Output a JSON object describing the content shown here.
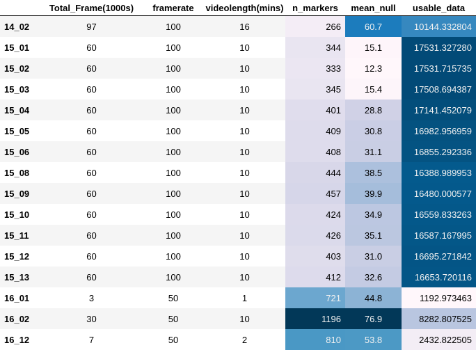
{
  "table": {
    "columns": [
      "",
      "Total_Frame(1000s)",
      "framerate",
      "videolength(mins)",
      "n_markers",
      "mean_null",
      "usable_data"
    ],
    "rows": [
      {
        "id": "14_02",
        "total_frame": "97",
        "framerate": "100",
        "videolength": "16",
        "n_markers": "266",
        "mean_null": "60.7",
        "usable_data": "10144.332804",
        "c_markers": "#f4edf6",
        "t_markers": "#000000",
        "c_null": "#1c7cbd",
        "t_null": "#f1f1f1",
        "c_usable": "#3688bf",
        "t_usable": "#f1f1f1"
      },
      {
        "id": "15_01",
        "total_frame": "60",
        "framerate": "100",
        "videolength": "10",
        "n_markers": "344",
        "mean_null": "15.1",
        "usable_data": "17531.327280",
        "c_markers": "#e9e5f1",
        "t_markers": "#000000",
        "c_null": "#fef5fa",
        "t_null": "#000000",
        "c_usable": "#024a77",
        "t_usable": "#f1f1f1"
      },
      {
        "id": "15_02",
        "total_frame": "60",
        "framerate": "100",
        "videolength": "10",
        "n_markers": "333",
        "mean_null": "12.3",
        "usable_data": "17531.715735",
        "c_markers": "#ebe6f2",
        "t_markers": "#000000",
        "c_null": "#fff7fb",
        "t_null": "#000000",
        "c_usable": "#024a77",
        "t_usable": "#f1f1f1"
      },
      {
        "id": "15_03",
        "total_frame": "60",
        "framerate": "100",
        "videolength": "10",
        "n_markers": "345",
        "mean_null": "15.4",
        "usable_data": "17508.694387",
        "c_markers": "#e9e5f1",
        "t_markers": "#000000",
        "c_null": "#fdf5fa",
        "t_null": "#000000",
        "c_usable": "#024a77",
        "t_usable": "#f1f1f1"
      },
      {
        "id": "15_04",
        "total_frame": "60",
        "framerate": "100",
        "videolength": "10",
        "n_markers": "401",
        "mean_null": "28.8",
        "usable_data": "17141.452079",
        "c_markers": "#e0dded",
        "t_markers": "#000000",
        "c_null": "#d0d1e6",
        "t_null": "#000000",
        "c_usable": "#034e7b",
        "t_usable": "#f1f1f1"
      },
      {
        "id": "15_05",
        "total_frame": "60",
        "framerate": "100",
        "videolength": "10",
        "n_markers": "409",
        "mean_null": "30.8",
        "usable_data": "16982.956959",
        "c_markers": "#dedcec",
        "t_markers": "#000000",
        "c_null": "#cacee5",
        "t_null": "#000000",
        "c_usable": "#045280",
        "t_usable": "#f1f1f1"
      },
      {
        "id": "15_06",
        "total_frame": "60",
        "framerate": "100",
        "videolength": "10",
        "n_markers": "408",
        "mean_null": "31.1",
        "usable_data": "16855.292336",
        "c_markers": "#dedcec",
        "t_markers": "#000000",
        "c_null": "#c9cee4",
        "t_null": "#000000",
        "c_usable": "#045382",
        "t_usable": "#f1f1f1"
      },
      {
        "id": "15_08",
        "total_frame": "60",
        "framerate": "100",
        "videolength": "10",
        "n_markers": "444",
        "mean_null": "38.5",
        "usable_data": "16388.989953",
        "c_markers": "#d8d7e9",
        "t_markers": "#000000",
        "c_null": "#acc0dd",
        "t_null": "#000000",
        "c_usable": "#045a8d",
        "t_usable": "#f1f1f1"
      },
      {
        "id": "15_09",
        "total_frame": "60",
        "framerate": "100",
        "videolength": "10",
        "n_markers": "457",
        "mean_null": "39.9",
        "usable_data": "16480.000577",
        "c_markers": "#d6d6e9",
        "t_markers": "#000000",
        "c_null": "#a5bddb",
        "t_null": "#000000",
        "c_usable": "#04598c",
        "t_usable": "#f1f1f1"
      },
      {
        "id": "15_10",
        "total_frame": "60",
        "framerate": "100",
        "videolength": "10",
        "n_markers": "424",
        "mean_null": "34.9",
        "usable_data": "16559.833263",
        "c_markers": "#dcdaeb",
        "t_markers": "#000000",
        "c_null": "#bcc7e1",
        "t_null": "#000000",
        "c_usable": "#04588a",
        "t_usable": "#f1f1f1"
      },
      {
        "id": "15_11",
        "total_frame": "60",
        "framerate": "100",
        "videolength": "10",
        "n_markers": "426",
        "mean_null": "35.1",
        "usable_data": "16587.167995",
        "c_markers": "#dbdaeb",
        "t_markers": "#000000",
        "c_null": "#bbc7e0",
        "t_null": "#000000",
        "c_usable": "#045788",
        "t_usable": "#f1f1f1"
      },
      {
        "id": "15_12",
        "total_frame": "60",
        "framerate": "100",
        "videolength": "10",
        "n_markers": "403",
        "mean_null": "31.0",
        "usable_data": "16695.271842",
        "c_markers": "#dfddec",
        "t_markers": "#000000",
        "c_null": "#c9cee4",
        "t_null": "#000000",
        "c_usable": "#045586",
        "t_usable": "#f1f1f1"
      },
      {
        "id": "15_13",
        "total_frame": "60",
        "framerate": "100",
        "videolength": "10",
        "n_markers": "412",
        "mean_null": "32.6",
        "usable_data": "16653.720116",
        "c_markers": "#dddbec",
        "t_markers": "#000000",
        "c_null": "#c4cbe3",
        "t_null": "#000000",
        "c_usable": "#045687",
        "t_usable": "#f1f1f1"
      },
      {
        "id": "16_01",
        "total_frame": "3",
        "framerate": "50",
        "videolength": "1",
        "n_markers": "721",
        "mean_null": "44.8",
        "usable_data": "1192.973463",
        "c_markers": "#6ca7cf",
        "t_markers": "#f1f1f1",
        "c_null": "#8cb3d5",
        "t_null": "#000000",
        "c_usable": "#fff7fb",
        "t_usable": "#000000"
      },
      {
        "id": "16_02",
        "total_frame": "30",
        "framerate": "50",
        "videolength": "10",
        "n_markers": "1196",
        "mean_null": "76.9",
        "usable_data": "8282.807525",
        "c_markers": "#023858",
        "t_markers": "#f1f1f1",
        "c_null": "#023858",
        "t_null": "#f1f1f1",
        "c_usable": "#b9c6e0",
        "t_usable": "#000000"
      },
      {
        "id": "16_12",
        "total_frame": "7",
        "framerate": "50",
        "videolength": "2",
        "n_markers": "810",
        "mean_null": "53.8",
        "usable_data": "2432.822505",
        "c_markers": "#4a98c5",
        "t_markers": "#f1f1f1",
        "c_null": "#4c99c5",
        "t_null": "#f1f1f1",
        "c_usable": "#f3edf5",
        "t_usable": "#000000"
      }
    ]
  }
}
